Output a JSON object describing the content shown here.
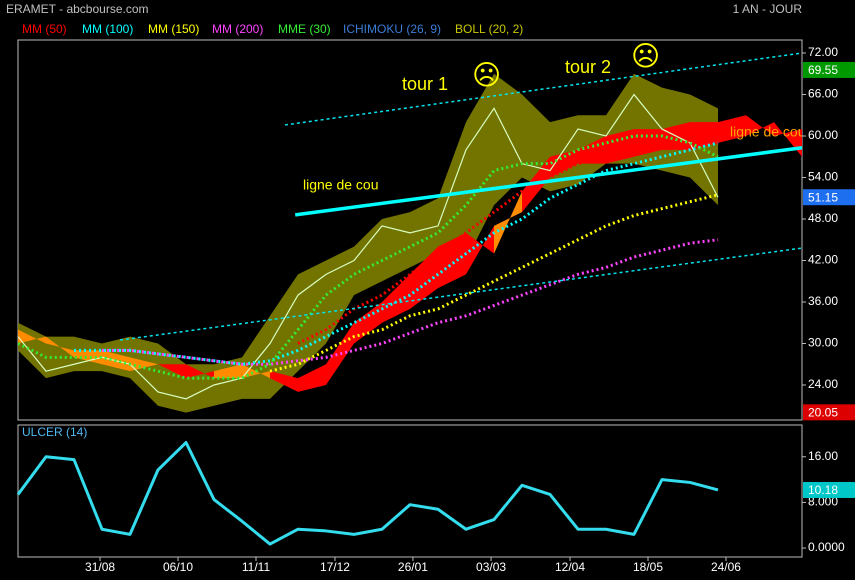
{
  "chart_data": [
    {
      "type": "line",
      "title": "ERAMET - abcbourse.com",
      "subtitle": "1 AN - JOUR",
      "x": [
        0,
        2,
        4,
        6,
        8,
        10,
        12,
        14,
        16,
        18,
        20,
        22,
        24,
        26,
        28,
        30,
        32,
        34,
        36,
        38,
        40,
        42,
        44,
        46,
        48,
        50,
        52,
        54,
        56
      ],
      "xlim": [
        0,
        56
      ],
      "ylim": [
        18.94,
        73.88
      ],
      "yticks": [
        {
          "value": 72,
          "label": "72.00"
        },
        {
          "value": 66,
          "label": "66.00"
        },
        {
          "value": 60,
          "label": "60.00"
        },
        {
          "value": 54,
          "label": "54.00"
        },
        {
          "value": 48,
          "label": "48.00"
        },
        {
          "value": 42,
          "label": "42.00"
        },
        {
          "value": 36,
          "label": "36.00"
        },
        {
          "value": 30,
          "label": "30.00"
        },
        {
          "value": 24,
          "label": "24.00"
        }
      ],
      "close": {
        "color": "#d8ffc0",
        "values": [
          31,
          26,
          27,
          28,
          27,
          23,
          22,
          24,
          25,
          30,
          37,
          40,
          42,
          47,
          46,
          47,
          58,
          64,
          56,
          55,
          61,
          60,
          66,
          61,
          59,
          51.15,
          null,
          null,
          null
        ]
      },
      "series": [
        {
          "name": "MM (50)",
          "color": "#ff0000",
          "values": [
            null,
            null,
            null,
            null,
            null,
            null,
            null,
            null,
            null,
            null,
            30,
            32,
            35,
            37,
            40,
            43,
            46,
            49,
            52,
            54,
            56,
            57,
            58,
            59,
            59,
            59,
            null,
            null,
            null
          ]
        },
        {
          "name": "MM (100)",
          "color": "#00ffff",
          "values": [
            null,
            null,
            29,
            29,
            29,
            28.5,
            28,
            27.5,
            27,
            27.5,
            29,
            31,
            33,
            35,
            37,
            40,
            43,
            46,
            48,
            51,
            53,
            55,
            56,
            57,
            58,
            59,
            null,
            null,
            null
          ]
        },
        {
          "name": "MM (150)",
          "color": "#ffff00",
          "values": [
            null,
            null,
            null,
            null,
            null,
            null,
            null,
            null,
            null,
            26,
            27,
            29,
            31,
            32,
            34,
            35,
            37,
            39,
            41,
            43,
            45,
            47,
            48.5,
            49.5,
            50.5,
            51.5,
            null,
            null,
            null
          ]
        },
        {
          "name": "MM (200)",
          "color": "#ff44ff",
          "values": [
            null,
            null,
            null,
            29,
            29,
            28.5,
            28,
            27.5,
            27,
            27,
            27.5,
            28,
            29,
            30,
            31.5,
            33,
            34,
            35.5,
            37,
            38.5,
            40,
            41,
            42.5,
            43.5,
            44.5,
            45,
            null,
            null,
            null
          ]
        },
        {
          "name": "MME (30)",
          "color": "#33ee33",
          "values": [
            30,
            28,
            28,
            28,
            27,
            26,
            25,
            25,
            25,
            27,
            32,
            37,
            40,
            42,
            44,
            46,
            50,
            55,
            56,
            56,
            58,
            59,
            60,
            60,
            59,
            57,
            null,
            null,
            null
          ]
        }
      ],
      "ichimoku": {
        "name": "ICHIMOKU (26, 9)",
        "color": "#3a7bd5",
        "fill_colors": [
          "#ff8c00",
          "#ff0000"
        ],
        "span_a": [
          32,
          30,
          29,
          29,
          28,
          27,
          25,
          26,
          27,
          25,
          23,
          24,
          30,
          33,
          35,
          38,
          40,
          47,
          49,
          54,
          56,
          56,
          57,
          58,
          58,
          59,
          60,
          62,
          57
        ],
        "span_b": [
          30,
          31,
          28,
          27,
          26,
          27,
          27,
          25,
          25,
          26,
          25,
          27,
          33,
          36,
          40,
          44,
          46,
          43,
          52,
          57,
          58,
          60,
          61,
          61,
          62,
          62,
          63,
          60,
          61
        ]
      },
      "bollinger": {
        "name": "BOLL (20, 2)",
        "color": "#c8c800",
        "fill": "#808000",
        "upper": [
          33,
          31,
          31,
          30,
          31,
          30,
          27,
          27,
          28,
          34,
          40,
          42,
          44,
          48,
          49,
          51,
          62,
          69,
          66,
          62,
          63,
          63,
          69,
          67,
          66,
          64,
          null,
          null,
          null
        ],
        "lower": [
          29,
          25,
          26,
          26,
          25,
          21,
          20,
          21,
          22,
          22,
          26,
          30,
          37,
          39,
          41,
          43,
          42,
          50,
          54,
          52,
          53,
          56,
          56,
          55,
          54,
          50,
          null,
          null,
          null
        ]
      },
      "trend_lines": [
        {
          "x": [
            19.07,
            56
          ],
          "y": [
            61.6,
            72
          ],
          "style": "dashed",
          "color": "#00e5ee"
        },
        {
          "x": [
            7.29,
            56
          ],
          "y": [
            30.5,
            43.8
          ],
          "style": "dashed",
          "color": "#00e5ee"
        },
        {
          "x": [
            19.8,
            56
          ],
          "y": [
            48.6,
            58.3
          ],
          "style": "solid",
          "color": "#00ffff"
        }
      ],
      "annotations": [
        {
          "text": "tour 1",
          "color": "#ffff00"
        },
        {
          "text": "☹",
          "color": "#ffff00"
        },
        {
          "text": "tour 2",
          "color": "#ffff00"
        },
        {
          "text": "☹",
          "color": "#ffff00"
        },
        {
          "text": "ligne de cou",
          "color": "#ffff00"
        },
        {
          "text": "ligne de cou",
          "color": "#ffa500"
        }
      ],
      "flags": [
        {
          "value": 69.55,
          "color": "#009900"
        },
        {
          "value": 51.15,
          "color": "#1e6ef0"
        },
        {
          "value": 20.05,
          "color": "#dd0000"
        }
      ]
    },
    {
      "type": "line",
      "x": [
        0,
        2,
        4,
        6,
        8,
        10,
        12,
        14,
        16,
        18,
        20,
        22,
        24,
        26,
        28,
        30,
        32,
        34,
        36,
        38,
        40,
        42,
        44,
        46,
        48,
        50
      ],
      "xlim": [
        0,
        56
      ],
      "ylim": [
        -1.57,
        21.57
      ],
      "xticks": [
        {
          "value": 5.86,
          "label": "31/08"
        },
        {
          "value": 11.43,
          "label": "06/10"
        },
        {
          "value": 17,
          "label": "11/11"
        },
        {
          "value": 22.64,
          "label": "17/12"
        },
        {
          "value": 28.21,
          "label": "26/01"
        },
        {
          "value": 33.79,
          "label": "03/03"
        },
        {
          "value": 39.43,
          "label": "12/04"
        },
        {
          "value": 45,
          "label": "18/05"
        },
        {
          "value": 50.57,
          "label": "24/06"
        }
      ],
      "yticks": [
        {
          "value": 16,
          "label": "16.00"
        },
        {
          "value": 8,
          "label": "8.000"
        },
        {
          "value": 0,
          "label": "0.0000"
        }
      ],
      "series": [
        {
          "name": "ULCER (14)",
          "color": "#33ddee",
          "values": [
            9.4,
            16,
            15.5,
            3.3,
            2.4,
            13.7,
            18.5,
            8.5,
            4.7,
            0.7,
            3.3,
            3,
            2.4,
            3.3,
            7.6,
            6.8,
            3.3,
            5,
            11,
            9.4,
            3.3,
            3.3,
            2.4,
            12,
            11.5,
            10.18
          ]
        }
      ],
      "flags": [
        {
          "value": 10.18,
          "color": "#00c8c8"
        }
      ]
    }
  ]
}
